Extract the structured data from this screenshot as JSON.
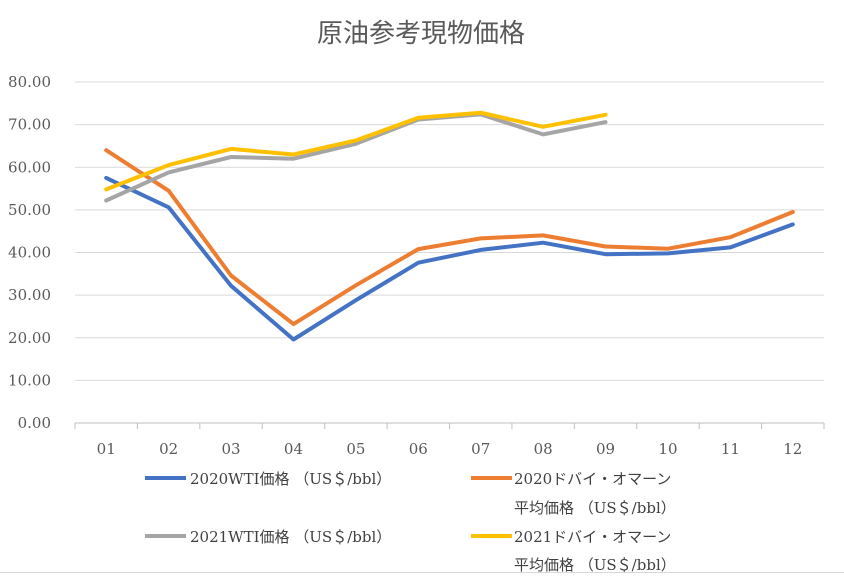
{
  "chart_data": {
    "type": "line",
    "title": "原油参考現物価格",
    "categories": [
      "01",
      "02",
      "03",
      "04",
      "05",
      "06",
      "07",
      "08",
      "09",
      "10",
      "11",
      "12"
    ],
    "ylim": [
      0,
      80
    ],
    "yticks": [
      "0.00",
      "10.00",
      "20.00",
      "30.00",
      "40.00",
      "50.00",
      "60.00",
      "70.00",
      "80.00"
    ],
    "ytick_values": [
      0,
      10,
      20,
      30,
      40,
      50,
      60,
      70,
      80
    ],
    "grid": true,
    "legend_position": "bottom",
    "series": [
      {
        "name": "2020WTI価格 （US＄/bbl）",
        "color": "#4472C4",
        "values": [
          57.5,
          50.6,
          32.2,
          19.6,
          28.8,
          37.6,
          40.6,
          42.3,
          39.6,
          39.8,
          41.2,
          46.6
        ]
      },
      {
        "name_line1": "2020ドバイ・オマーン",
        "name_line2": "平均価格 （US＄/bbl）",
        "color": "#ED7D31",
        "values": [
          64.0,
          54.5,
          34.6,
          23.2,
          32.3,
          40.8,
          43.3,
          44.0,
          41.4,
          40.9,
          43.6,
          49.5
        ]
      },
      {
        "name": "2021WTI価格 （US＄/bbl）",
        "color": "#A5A5A5",
        "values": [
          52.2,
          58.8,
          62.4,
          62.0,
          65.5,
          71.2,
          72.4,
          67.7,
          70.6,
          null,
          null,
          null
        ]
      },
      {
        "name_line1": "2021ドバイ・オマーン",
        "name_line2": "平均価格 （US＄/bbl）",
        "color": "#FFC000",
        "values": [
          54.8,
          60.5,
          64.3,
          63.0,
          66.3,
          71.6,
          72.8,
          69.5,
          72.3,
          null,
          null,
          null
        ]
      }
    ]
  }
}
